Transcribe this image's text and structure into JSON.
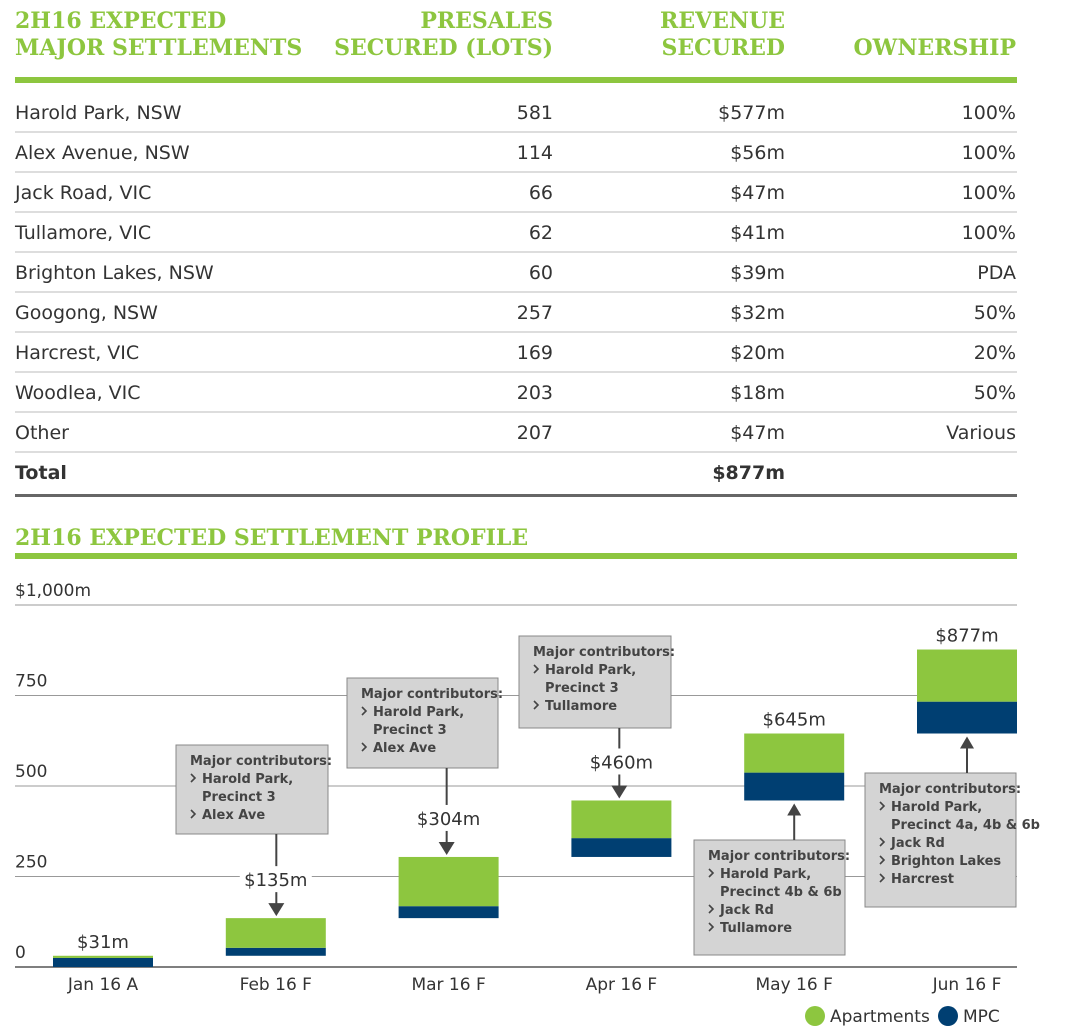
{
  "table": {
    "headers": [
      [
        "2H16 EXPECTED",
        "MAJOR SETTLEMENTS"
      ],
      [
        "PRESALES",
        "SECURED (LOTS)"
      ],
      [
        "REVENUE",
        "SECURED"
      ],
      [
        "OWNERSHIP"
      ]
    ],
    "rows": [
      [
        "Harold Park, NSW",
        "581",
        "$577m",
        "100%"
      ],
      [
        "Alex Avenue, NSW",
        "114",
        "$56m",
        "100%"
      ],
      [
        "Jack Road, VIC",
        "66",
        "$47m",
        "100%"
      ],
      [
        "Tullamore, VIC",
        "62",
        "$41m",
        "100%"
      ],
      [
        "Brighton Lakes, NSW",
        "60",
        "$39m",
        "PDA"
      ],
      [
        "Googong, NSW",
        "257",
        "$32m",
        "50%"
      ],
      [
        "Harcrest, VIC",
        "169",
        "$20m",
        "20%"
      ],
      [
        "Woodlea, VIC",
        "203",
        "$18m",
        "50%"
      ],
      [
        "Other",
        "207",
        "$47m",
        "Various"
      ]
    ],
    "total": {
      "label": "Total",
      "revenue": "$877m"
    }
  },
  "chart_data": {
    "type": "waterfall",
    "title": "2H16 EXPECTED SETTLEMENT PROFILE",
    "categories": [
      "Jan 16 A",
      "Feb 16 F",
      "Mar 16 F",
      "Apr 16 F",
      "May 16 F",
      "Jun 16 F"
    ],
    "series": [
      {
        "name": "MPC",
        "color": "#003f72",
        "values": [
          25,
          22,
          33,
          52,
          77,
          88
        ]
      },
      {
        "name": "Apartments",
        "color": "#8dc63f",
        "values": [
          6,
          82,
          136,
          104,
          108,
          144
        ]
      }
    ],
    "totals": {
      "values": [
        31,
        135,
        304,
        460,
        645,
        877
      ],
      "value_labels": [
        "$31m",
        "$135m",
        "$304m",
        "$460m",
        "$645m",
        "$877m"
      ]
    },
    "ylim": [
      0,
      1000
    ],
    "yticks": [
      0,
      250,
      500,
      750,
      {
        "value": 1000,
        "label": "$1,000m"
      }
    ],
    "grid": true,
    "annotations": [
      {
        "category": 1,
        "heading": "Major contributors:",
        "items": [
          [
            "Harold Park,",
            "Precinct 3"
          ],
          [
            "Alex Ave"
          ]
        ]
      },
      {
        "category": 2,
        "heading": "Major contributors:",
        "items": [
          [
            "Harold Park,",
            "Precinct 3"
          ],
          [
            "Alex Ave"
          ]
        ]
      },
      {
        "category": 3,
        "heading": "Major contributors:",
        "items": [
          [
            "Harold Park,",
            "Precinct 3"
          ],
          [
            "Tullamore"
          ]
        ]
      },
      {
        "category": 4,
        "heading": "Major contributors:",
        "items": [
          [
            "Harold Park,",
            "Precinct 4b & 6b"
          ],
          [
            "Jack Rd"
          ],
          [
            "Tullamore"
          ]
        ]
      },
      {
        "category": 5,
        "heading": "Major contributors:",
        "items": [
          [
            "Harold Park,",
            "Precinct 4a, 4b & 6b"
          ],
          [
            "Jack Rd"
          ],
          [
            "Brighton Lakes"
          ],
          [
            "Harcrest"
          ]
        ]
      }
    ]
  }
}
